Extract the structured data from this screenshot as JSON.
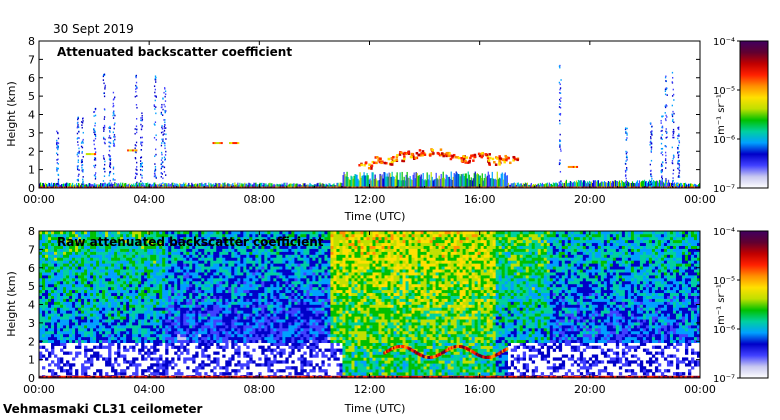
{
  "date_label": "30 Sept 2019",
  "instrument_label": "Vehmasmaki CL31 ceilometer",
  "colorbar": {
    "unit_html": "m⁻¹ sr⁻¹",
    "tick_labels": [
      "10⁻⁷",
      "10⁻⁶",
      "10⁻⁵",
      "10⁻⁴"
    ],
    "colors": [
      "#ffffff",
      "#c8c8f0",
      "#4040ff",
      "#0000c8",
      "#00a0ff",
      "#00d0a0",
      "#00c000",
      "#c0e000",
      "#ffe000",
      "#ff9000",
      "#ff2000",
      "#c00000",
      "#600030",
      "#400060"
    ]
  },
  "chart_data": [
    {
      "type": "heatmap",
      "title": "Attenuated backscatter coefficient",
      "xlabel": "Time (UTC)",
      "ylabel": "Height (km)",
      "xlim": [
        0,
        24
      ],
      "ylim": [
        0,
        8
      ],
      "x_ticks": [
        "00:00",
        "04:00",
        "08:00",
        "12:00",
        "16:00",
        "20:00",
        "00:00"
      ],
      "y_ticks": [
        "0",
        "1",
        "2",
        "3",
        "4",
        "5",
        "6",
        "7",
        "8"
      ],
      "colorbar_range_log10": [
        -7,
        -4
      ]
    },
    {
      "type": "heatmap",
      "title": "Raw attenuated backscatter coefficient",
      "xlabel": "Time (UTC)",
      "ylabel": "Height (km)",
      "xlim": [
        0,
        24
      ],
      "ylim": [
        0,
        8
      ],
      "x_ticks": [
        "00:00",
        "04:00",
        "08:00",
        "12:00",
        "16:00",
        "20:00",
        "00:00"
      ],
      "y_ticks": [
        "0",
        "1",
        "2",
        "3",
        "4",
        "5",
        "6",
        "7",
        "8"
      ],
      "colorbar_range_log10": [
        -7,
        -4
      ]
    }
  ]
}
